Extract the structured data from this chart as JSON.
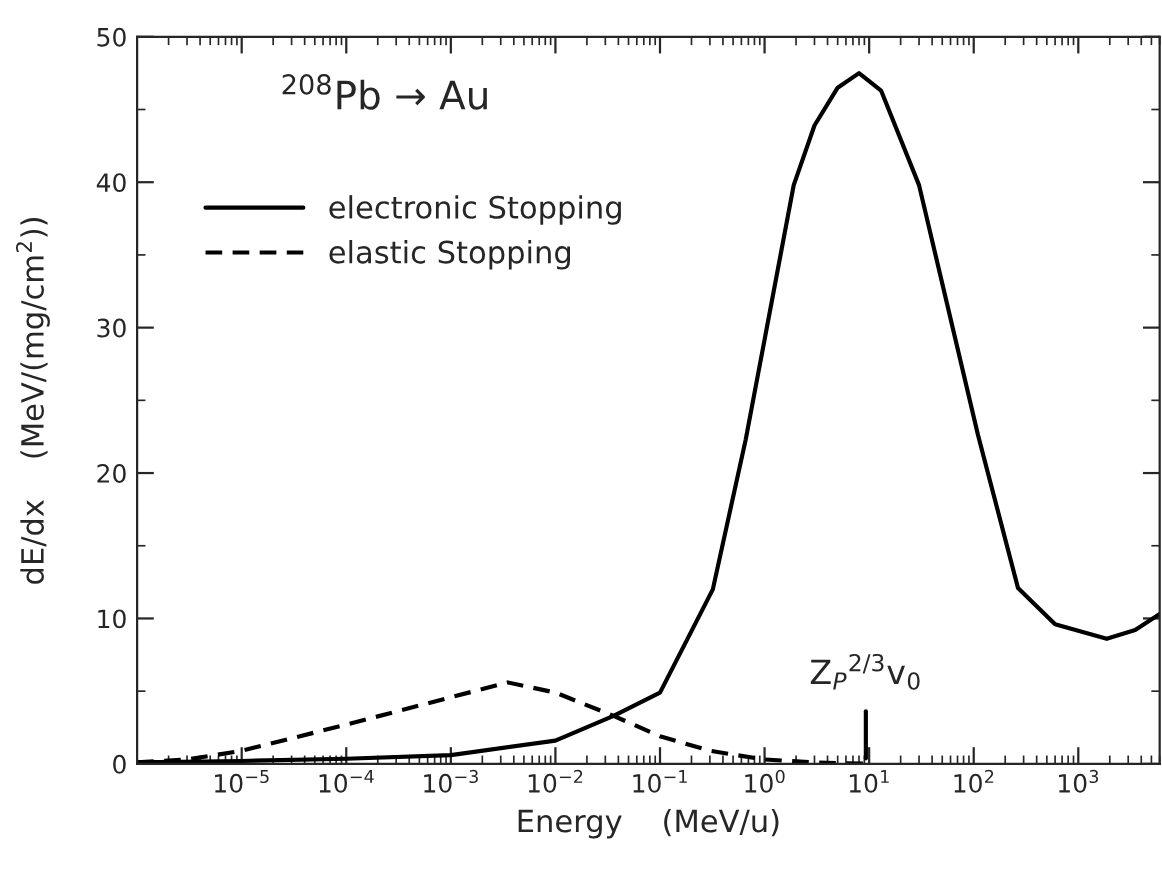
{
  "chart_data": {
    "type": "line",
    "xlabel": "Energy    (MeV/u)",
    "ylabel": "dE/dx    (MeV/(mg/cm$^{2}$))",
    "log": "x",
    "xlim": [
      1e-06,
      6000
    ],
    "ylim": [
      0,
      50
    ],
    "xticks": [
      {
        "value": 1e-05,
        "label": "10$^{−5}$"
      },
      {
        "value": 0.0001,
        "label": "10$^{−4}$"
      },
      {
        "value": 0.001,
        "label": "10$^{−3}$"
      },
      {
        "value": 0.01,
        "label": "10$^{−2}$"
      },
      {
        "value": 0.1,
        "label": "10$^{−1}$"
      },
      {
        "value": 1,
        "label": "10$^{0}$"
      },
      {
        "value": 10,
        "label": "10$^{1}$"
      },
      {
        "value": 100,
        "label": "10$^{2}$"
      },
      {
        "value": 1000,
        "label": "10$^{3}$"
      }
    ],
    "yticks": [
      0,
      10,
      20,
      30,
      40,
      50
    ],
    "grid": false,
    "legend": "top left",
    "series": [
      {
        "name": "electronic Stopping",
        "color": "#000000",
        "line_style": "solid",
        "x": [
          1e-06,
          1e-05,
          0.0001,
          0.001,
          0.01,
          0.036,
          0.1,
          0.32,
          0.66,
          1.9,
          3,
          5,
          8,
          13,
          30,
          110,
          265,
          600,
          1870,
          3500,
          6000
        ],
        "values": [
          0.1,
          0.2,
          0.35,
          0.6,
          1.6,
          3.3,
          4.9,
          12,
          22.3,
          39.8,
          43.9,
          46.5,
          47.5,
          46.3,
          39.8,
          22.6,
          12.1,
          9.6,
          8.6,
          9.2,
          10.3
        ]
      },
      {
        "name": "elastic Stopping",
        "color": "#000000",
        "line_style": "dashed",
        "x": [
          1e-06,
          3e-06,
          1e-05,
          0.0001,
          0.0035,
          0.01,
          0.036,
          0.1,
          0.3,
          1,
          3,
          10
        ],
        "values": [
          0.1,
          0.3,
          0.9,
          2.7,
          5.6,
          4.9,
          3.3,
          1.9,
          0.9,
          0.3,
          0.1,
          0
        ]
      }
    ],
    "annotations": [
      "$^{208}$Pb → Au",
      {
        "text": "Z$_{P}$$^{2/3}$v$_{0}$",
        "x": 9.3,
        "y": 0
      }
    ]
  }
}
